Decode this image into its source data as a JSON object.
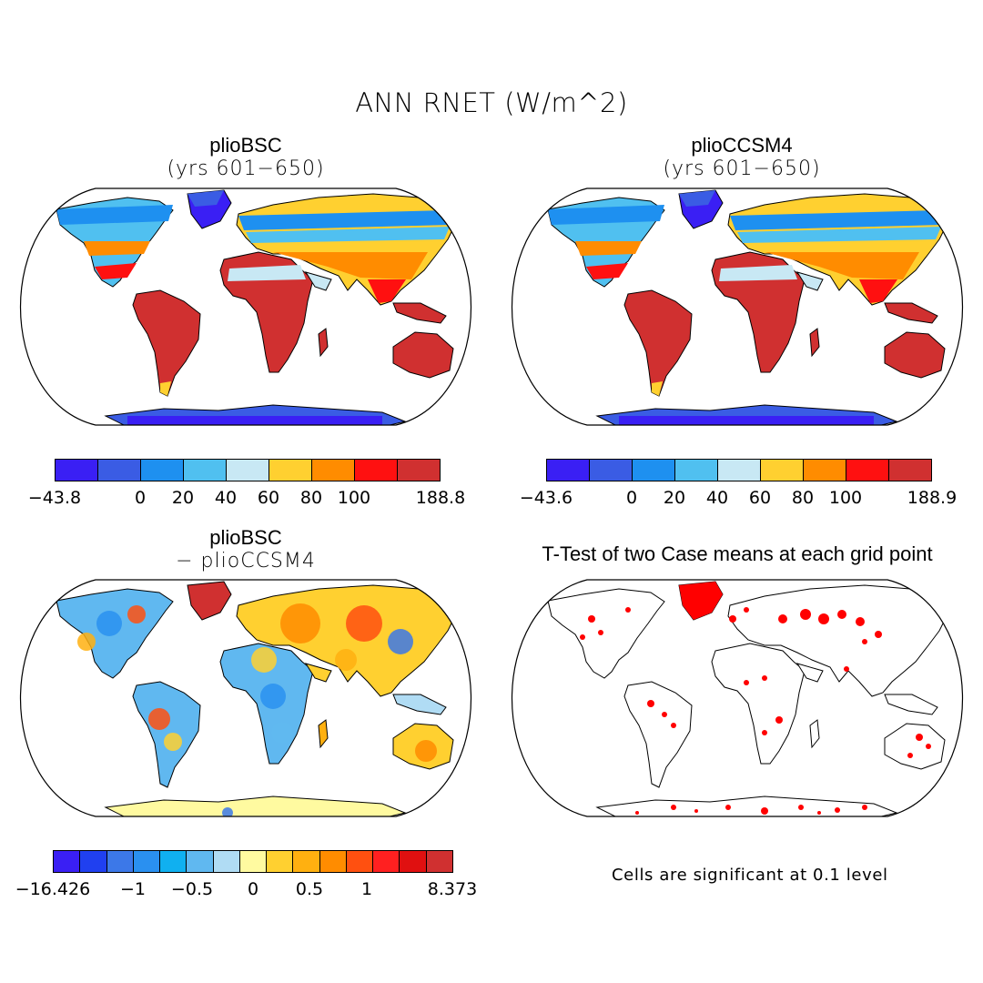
{
  "title": "ANN RNET (W/m^2)",
  "panels": [
    {
      "title": "plioBSC",
      "subtitle": "(yrs 601−650)"
    },
    {
      "title": "plioCCSM4",
      "subtitle": "(yrs 601−650)"
    },
    {
      "title": "plioBSC",
      "subtitle": "− plioCCSM4"
    },
    {
      "title": "T-Test of two Case means at each grid point",
      "subtitle": ""
    }
  ],
  "colorbars": [
    {
      "colors": [
        "#3a1ff4",
        "#3a5ce4",
        "#1e90f0",
        "#50c0f0",
        "#c8e8f4",
        "#ffd030",
        "#ff8c00",
        "#ff1010",
        "#d03030"
      ],
      "ticks": [
        "−43.8",
        "0",
        "20",
        "40",
        "60",
        "80",
        "100",
        "188.8"
      ]
    },
    {
      "colors": [
        "#3a1ff4",
        "#3a5ce4",
        "#1e90f0",
        "#50c0f0",
        "#c8e8f4",
        "#ffd030",
        "#ff8c00",
        "#ff1010",
        "#d03030"
      ],
      "ticks": [
        "−43.6",
        "0",
        "20",
        "40",
        "60",
        "80",
        "100",
        "188.9"
      ]
    },
    {
      "colors": [
        "#3a1ff4",
        "#2040f0",
        "#3c78e8",
        "#2a90f0",
        "#10b0f0",
        "#60b8f0",
        "#b0dcf4",
        "#fffaa0",
        "#ffd030",
        "#ffb010",
        "#ff8c00",
        "#ff5010",
        "#ff2020",
        "#e01010",
        "#d03030"
      ],
      "ticks": [
        "−16.426",
        "−1",
        "−0.5",
        "0",
        "0.5",
        "1",
        "8.373"
      ]
    }
  ],
  "note": "Cells are significant at 0.1 level",
  "colors": {
    "ocean": "#ffffff",
    "coast": "#000000",
    "significant": "#ff0000"
  }
}
